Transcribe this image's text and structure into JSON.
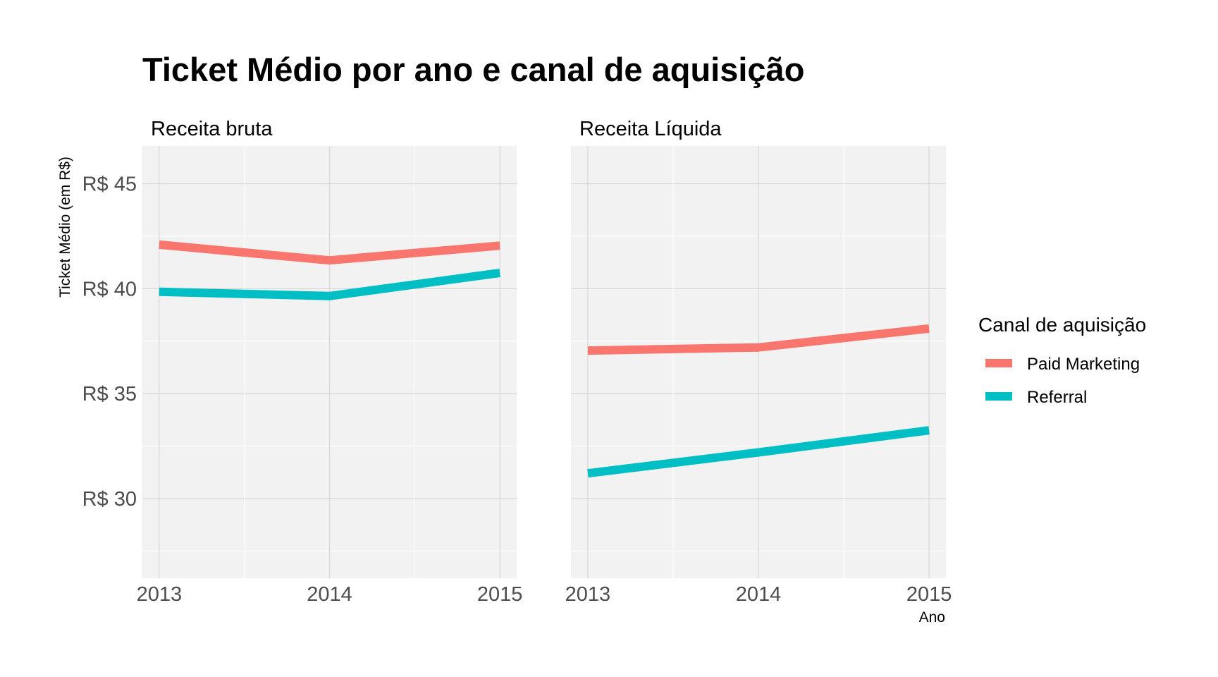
{
  "title": "Ticket Médio por ano e canal de aquisição",
  "ylabel": "Ticket Médio (em R$)",
  "xlabel": "Ano",
  "legend": {
    "title": "Canal de aquisição",
    "position": "right"
  },
  "chart_data": {
    "type": "line",
    "title": "Ticket Médio por ano e canal de aquisição",
    "xlabel": "Ano",
    "ylabel": "Ticket Médio (em R$)",
    "ylim": [
      26.2,
      46.8
    ],
    "yticks": [
      30,
      35,
      40,
      45
    ],
    "ytick_labels": [
      "R$ 30",
      "R$ 35",
      "R$ 40",
      "R$ 45"
    ],
    "x": [
      2013,
      2014,
      2015
    ],
    "xtick_labels": [
      "2013",
      "2014",
      "2015"
    ],
    "grid": true,
    "legend_title": "Canal de aquisição",
    "legend_position": "right",
    "panels": [
      {
        "title": "Receita bruta",
        "series": [
          {
            "name": "Paid Marketing",
            "color": "#F8766D",
            "values": [
              42.1,
              41.35,
              42.05
            ]
          },
          {
            "name": "Referral",
            "color": "#00BFC4",
            "values": [
              39.85,
              39.65,
              40.75
            ]
          }
        ]
      },
      {
        "title": "Receita Líquida",
        "series": [
          {
            "name": "Paid Marketing",
            "color": "#F8766D",
            "values": [
              37.05,
              37.2,
              38.1
            ]
          },
          {
            "name": "Referral",
            "color": "#00BFC4",
            "values": [
              31.2,
              32.2,
              33.25
            ]
          }
        ]
      }
    ]
  }
}
